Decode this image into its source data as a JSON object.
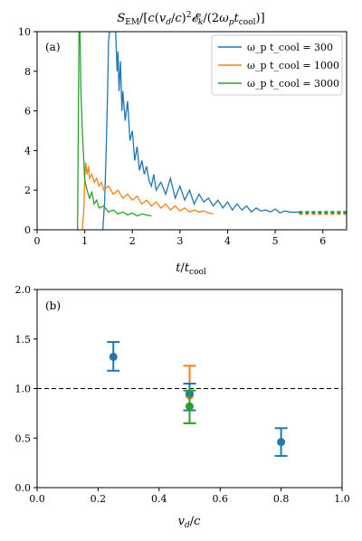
{
  "chart_data": [
    {
      "type": "line",
      "panel_label": "(a)",
      "title": "S_EM/[c(v_d/c)²𝓔_k/(2ω_p t_cool)]",
      "xlabel": "t/t_cool",
      "ylabel": "",
      "xlim": [
        0,
        6.5
      ],
      "ylim": [
        0,
        10
      ],
      "xticks": [
        0,
        1,
        2,
        3,
        4,
        5,
        6
      ],
      "yticks": [
        0,
        2,
        4,
        6,
        8,
        10
      ],
      "grid": false,
      "legend_position": "top-right",
      "series": [
        {
          "name": "ω_p t_cool = 300",
          "color": "#1f77b4",
          "x": [
            1.38,
            1.42,
            1.45,
            1.48,
            1.5,
            1.52,
            1.55,
            1.58,
            1.6,
            1.62,
            1.65,
            1.68,
            1.7,
            1.72,
            1.75,
            1.78,
            1.8,
            1.85,
            1.9,
            1.95,
            2.0,
            2.05,
            2.1,
            2.15,
            2.2,
            2.25,
            2.3,
            2.35,
            2.4,
            2.45,
            2.5,
            2.6,
            2.7,
            2.8,
            2.9,
            3.0,
            3.1,
            3.2,
            3.3,
            3.4,
            3.5,
            3.6,
            3.7,
            3.8,
            3.9,
            4.0,
            4.1,
            4.2,
            4.3,
            4.4,
            4.5,
            4.6,
            4.7,
            4.8,
            4.9,
            5.0,
            5.1,
            5.2,
            5.3,
            5.4,
            5.5
          ],
          "y": [
            0.0,
            1.5,
            4.0,
            7.0,
            9.5,
            10.0,
            10.0,
            10.0,
            10.0,
            10.0,
            10.0,
            8.0,
            9.0,
            7.0,
            8.5,
            6.0,
            7.0,
            5.5,
            6.5,
            4.5,
            5.0,
            3.5,
            4.2,
            3.0,
            3.5,
            2.8,
            3.2,
            2.5,
            2.2,
            2.8,
            2.0,
            2.4,
            1.8,
            2.6,
            1.6,
            2.2,
            1.5,
            2.0,
            1.3,
            1.8,
            1.4,
            1.6,
            1.2,
            1.5,
            1.1,
            1.4,
            1.0,
            1.3,
            1.0,
            1.2,
            0.9,
            1.1,
            0.95,
            1.0,
            0.9,
            1.05,
            0.85,
            0.95,
            0.9,
            0.88,
            0.9
          ],
          "extrapolated_x": [
            5.5,
            6.5
          ],
          "extrapolated_y": 0.9
        },
        {
          "name": "ω_p t_cool = 1000",
          "color": "#ff7f0e",
          "x": [
            0.95,
            0.98,
            1.0,
            1.02,
            1.05,
            1.08,
            1.1,
            1.15,
            1.2,
            1.25,
            1.3,
            1.35,
            1.4,
            1.5,
            1.6,
            1.7,
            1.8,
            1.9,
            2.0,
            2.1,
            2.2,
            2.3,
            2.4,
            2.5,
            2.6,
            2.7,
            2.8,
            2.9,
            3.0,
            3.1,
            3.2,
            3.3,
            3.4,
            3.5,
            3.6,
            3.7
          ],
          "y": [
            0.0,
            1.0,
            2.5,
            3.4,
            2.8,
            3.2,
            2.6,
            2.8,
            2.4,
            2.6,
            2.2,
            2.4,
            2.0,
            2.2,
            1.8,
            2.0,
            1.6,
            1.8,
            1.5,
            1.7,
            1.3,
            1.5,
            1.2,
            1.4,
            1.1,
            1.3,
            1.0,
            1.2,
            0.95,
            1.1,
            0.9,
            1.0,
            0.9,
            0.95,
            0.85,
            0.8
          ],
          "extrapolated_x": [
            5.5,
            6.5
          ],
          "extrapolated_y": 0.8
        },
        {
          "name": "ω_p t_cool = 3000",
          "color": "#2ca02c",
          "x": [
            0.85,
            0.88,
            0.9,
            0.92,
            0.95,
            0.98,
            1.0,
            1.05,
            1.1,
            1.15,
            1.2,
            1.25,
            1.3,
            1.4,
            1.5,
            1.6,
            1.7,
            1.8,
            1.9,
            2.0,
            2.1,
            2.2,
            2.3,
            2.4
          ],
          "y": [
            0.0,
            10.0,
            10.0,
            7.0,
            5.0,
            3.5,
            2.5,
            2.0,
            1.6,
            1.9,
            1.3,
            1.5,
            1.1,
            1.2,
            0.9,
            1.0,
            0.8,
            0.9,
            0.75,
            0.85,
            0.7,
            0.8,
            0.75,
            0.7
          ],
          "extrapolated_x": [
            5.5,
            6.5
          ],
          "extrapolated_y": 0.85
        }
      ]
    },
    {
      "type": "scatter",
      "panel_label": "(b)",
      "xlabel": "v_d/c",
      "ylabel": "",
      "xlim": [
        0,
        1.0
      ],
      "ylim": [
        0,
        2.0
      ],
      "xticks": [
        0.0,
        0.2,
        0.4,
        0.6,
        0.8,
        1.0
      ],
      "yticks": [
        0.0,
        0.5,
        1.0,
        1.5,
        2.0
      ],
      "grid": false,
      "reference_line_y": 1.0,
      "points": [
        {
          "x": 0.25,
          "y": 1.32,
          "err_low": 1.18,
          "err_high": 1.47,
          "color": "#1f77b4"
        },
        {
          "x": 0.5,
          "y": 0.93,
          "err_low": 0.65,
          "err_high": 1.23,
          "color": "#ff7f0e"
        },
        {
          "x": 0.5,
          "y": 0.95,
          "err_low": 0.78,
          "err_high": 1.05,
          "color": "#1f77b4"
        },
        {
          "x": 0.5,
          "y": 0.82,
          "err_low": 0.65,
          "err_high": 0.98,
          "color": "#2ca02c"
        },
        {
          "x": 0.8,
          "y": 0.46,
          "err_low": 0.32,
          "err_high": 0.6,
          "color": "#1f77b4"
        }
      ]
    }
  ]
}
